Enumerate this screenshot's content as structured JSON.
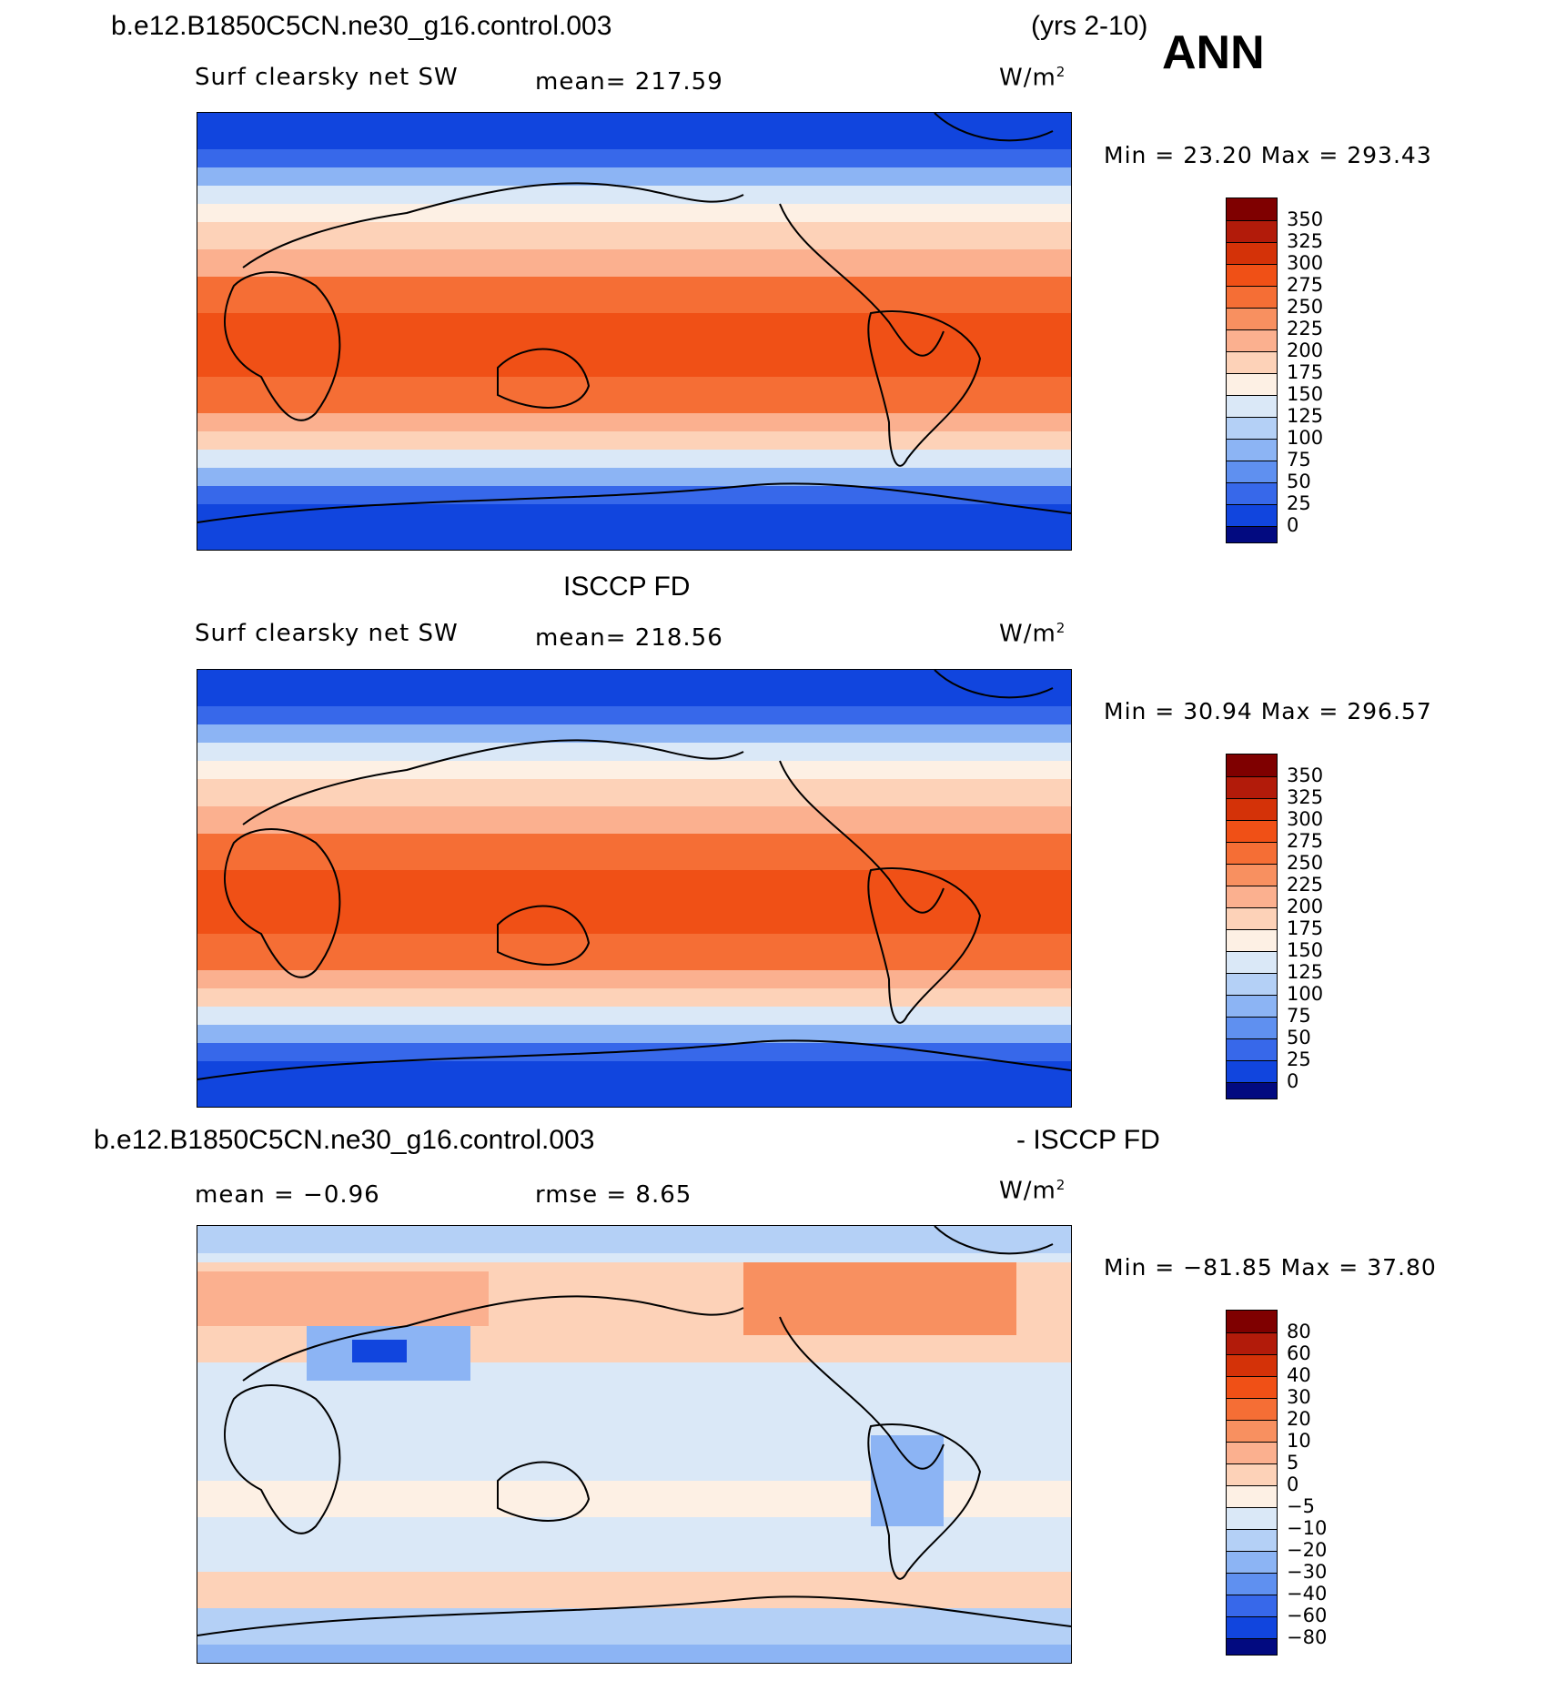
{
  "header": {
    "case_name": "b.e12.B1850C5CN.ne30_g16.control.003",
    "years": "(yrs 2-10)",
    "season": "ANN"
  },
  "panels": [
    {
      "title": "",
      "variable": "Surf clearsky net SW",
      "stat": "mean=  217.59",
      "units": "W/m",
      "units_exp": "2",
      "minmax": "Min =   23.20 Max = 293.43",
      "levels": [
        "350",
        "325",
        "300",
        "275",
        "250",
        "225",
        "200",
        "175",
        "150",
        "125",
        "100",
        "75",
        "50",
        "25",
        "0"
      ],
      "colors": [
        "#7f0000",
        "#b21b0a",
        "#d43208",
        "#f05016",
        "#f56e35",
        "#f89060",
        "#fbb08f",
        "#fdd2b8",
        "#fdf0e4",
        "#dae8f7",
        "#b4d0f6",
        "#8cb4f4",
        "#5f90f0",
        "#3768ea",
        "#1145de",
        "#0a31b2",
        "#020a80"
      ]
    },
    {
      "title": "ISCCP FD",
      "variable": "Surf clearsky net SW",
      "stat": "mean=  218.56",
      "units": "W/m",
      "units_exp": "2",
      "minmax": "Min =   30.94 Max = 296.57",
      "levels": [
        "350",
        "325",
        "300",
        "275",
        "250",
        "225",
        "200",
        "175",
        "150",
        "125",
        "100",
        "75",
        "50",
        "25",
        "0"
      ],
      "colors": [
        "#7f0000",
        "#b21b0a",
        "#d43208",
        "#f05016",
        "#f56e35",
        "#f89060",
        "#fbb08f",
        "#fdd2b8",
        "#fdf0e4",
        "#dae8f7",
        "#b4d0f6",
        "#8cb4f4",
        "#5f90f0",
        "#3768ea",
        "#1145de",
        "#0a31b2",
        "#020a80"
      ]
    },
    {
      "title_left": "b.e12.B1850C5CN.ne30_g16.control.003",
      "title_right": "- ISCCP FD",
      "stat_mean": "mean =   −0.96",
      "stat_rmse": "rmse =    8.65",
      "units": "W/m",
      "units_exp": "2",
      "minmax": "Min = −81.85 Max =   37.80",
      "levels": [
        "80",
        "60",
        "40",
        "30",
        "20",
        "10",
        "5",
        "0",
        "−5",
        "−10",
        "−20",
        "−30",
        "−40",
        "−60",
        "−80"
      ],
      "colors": [
        "#7f0000",
        "#b21b0a",
        "#d43208",
        "#f05016",
        "#f56e35",
        "#f89060",
        "#fbb08f",
        "#fdd2b8",
        "#fdf0e4",
        "#dae8f7",
        "#b4d0f6",
        "#8cb4f4",
        "#5f90f0",
        "#3768ea",
        "#1145de",
        "#0a31b2",
        "#020a80"
      ]
    }
  ]
}
